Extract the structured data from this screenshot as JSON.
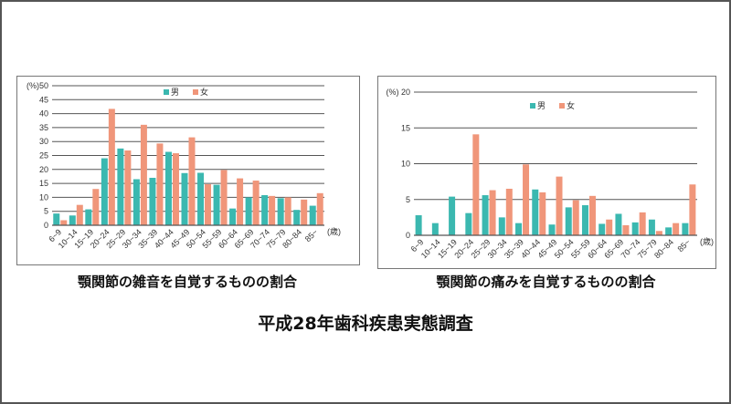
{
  "colors": {
    "male": "#3BB8B0",
    "female": "#F0967A",
    "grid": "#555555",
    "frame": "#555555"
  },
  "captions": {
    "chart1": "顎関節の雑音を自覚するものの割合",
    "chart2": "顎関節の痛みを自覚するものの割合",
    "source": "平成28年歯科疾患実態調査"
  },
  "chart_data": [
    {
      "type": "bar",
      "title": "顎関節の雑音を自覚するものの割合",
      "ylabel": "(%)",
      "xlabel": "(歳)",
      "ylim": [
        0,
        50
      ],
      "yticks": [
        0,
        5,
        10,
        15,
        20,
        25,
        30,
        35,
        40,
        45,
        50
      ],
      "grid": true,
      "legend": [
        "男",
        "女"
      ],
      "legend_position": "top-center",
      "categories": [
        "6~9",
        "10~14",
        "15~19",
        "20~24",
        "25~29",
        "30~34",
        "35~39",
        "40~44",
        "45~49",
        "50~54",
        "55~59",
        "60~64",
        "65~69",
        "70~74",
        "75~79",
        "80~84",
        "85~"
      ],
      "series": [
        {
          "name": "男",
          "values": [
            4.2,
            3.5,
            5.7,
            24.0,
            27.5,
            16.5,
            17.0,
            26.3,
            18.7,
            18.8,
            14.5,
            6.0,
            10.0,
            10.8,
            9.7,
            5.5,
            7.0
          ]
        },
        {
          "name": "女",
          "values": [
            1.8,
            7.3,
            13.0,
            41.7,
            26.8,
            36.0,
            29.3,
            25.8,
            31.5,
            14.7,
            19.8,
            16.8,
            16.0,
            10.5,
            10.0,
            9.2,
            11.5
          ]
        }
      ]
    },
    {
      "type": "bar",
      "title": "顎関節の痛みを自覚するものの割合",
      "ylabel": "(%)",
      "xlabel": "(歳)",
      "ylim": [
        0,
        20
      ],
      "yticks": [
        0,
        5,
        10,
        15,
        20
      ],
      "grid": true,
      "legend": [
        "男",
        "女"
      ],
      "legend_position": "top-center",
      "categories": [
        "6~9",
        "10~14",
        "15~19",
        "20~24",
        "25~29",
        "30~34",
        "35~39",
        "40~44",
        "45~49",
        "50~54",
        "55~59",
        "60~64",
        "65~69",
        "70~74",
        "75~79",
        "80~84",
        "85~"
      ],
      "series": [
        {
          "name": "男",
          "values": [
            2.8,
            1.7,
            5.4,
            3.1,
            5.6,
            2.5,
            1.7,
            6.4,
            1.5,
            3.9,
            4.2,
            1.6,
            3.0,
            1.8,
            2.2,
            1.1,
            1.7
          ]
        },
        {
          "name": "女",
          "values": [
            0,
            0,
            0,
            14.1,
            6.3,
            6.5,
            9.9,
            6.0,
            8.2,
            4.9,
            5.5,
            2.2,
            1.4,
            3.2,
            0.6,
            1.7,
            7.1
          ]
        }
      ]
    }
  ]
}
